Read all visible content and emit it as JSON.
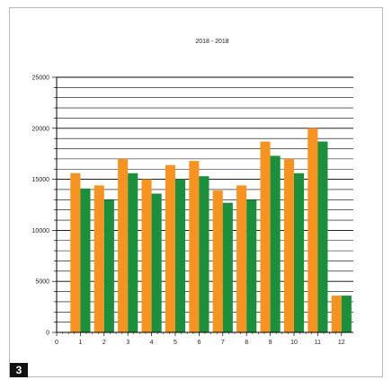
{
  "chart_data": {
    "type": "bar",
    "title": "2018 - 2018",
    "xlabel": "",
    "ylabel": "",
    "x_ticks": [
      "0",
      "1",
      "2",
      "3",
      "4",
      "5",
      "6",
      "7",
      "8",
      "9",
      "10",
      "11",
      "12"
    ],
    "categories": [
      "1",
      "2",
      "3",
      "4",
      "5",
      "6",
      "7",
      "8",
      "9",
      "10",
      "11",
      "12"
    ],
    "y_ticks": [
      "0",
      "5000",
      "10000",
      "15000",
      "20000",
      "25000"
    ],
    "ylim": [
      0,
      25000
    ],
    "grid": true,
    "series": [
      {
        "values": [
          15600,
          14400,
          17000,
          15000,
          16400,
          16800,
          13900,
          14400,
          18700,
          17000,
          20000,
          3600
        ]
      },
      {
        "values": [
          14100,
          13000,
          15600,
          13600,
          15000,
          15300,
          12700,
          13000,
          17300,
          15600,
          18700,
          3600
        ]
      }
    ],
    "colors": [
      "#f7931e",
      "#1a8f3c"
    ]
  },
  "badge": "3"
}
